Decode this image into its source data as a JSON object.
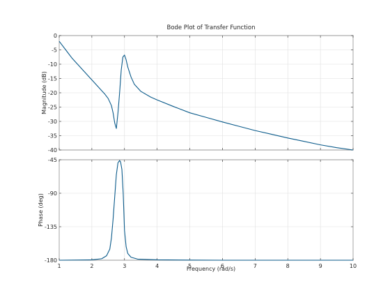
{
  "chart_data": [
    {
      "type": "line",
      "title": "Bode Plot of Transfer Function",
      "xlabel": "",
      "ylabel": "Magnitude (dB)",
      "xlim": [
        1,
        10
      ],
      "ylim": [
        -40,
        0
      ],
      "xticks": [
        "1",
        "2",
        "3",
        "4",
        "5",
        "6",
        "7",
        "8",
        "9",
        "10"
      ],
      "yticks": [
        "0",
        "-5",
        "-10",
        "-15",
        "-20",
        "-25",
        "-30",
        "-35",
        "-40"
      ],
      "grid": true,
      "series": [
        {
          "x": [
            1.0,
            1.2,
            1.4,
            1.6,
            1.8,
            2.0,
            2.2,
            2.4,
            2.5,
            2.6,
            2.65,
            2.7,
            2.75,
            2.8,
            2.85,
            2.9,
            2.95,
            3.0,
            3.05,
            3.1,
            3.2,
            3.3,
            3.5,
            3.8,
            4.0,
            4.5,
            5.0,
            5.5,
            6.0,
            6.5,
            7.0,
            7.5,
            8.0,
            8.5,
            9.0,
            9.5,
            10.0
          ],
          "y": [
            -2,
            -5,
            -8,
            -10.5,
            -13,
            -15.5,
            -18,
            -20.5,
            -22,
            -24.5,
            -27,
            -30.5,
            -32.5,
            -27,
            -20,
            -12,
            -7.5,
            -6.8,
            -8.5,
            -11,
            -14.5,
            -17,
            -19.5,
            -21.5,
            -22.5,
            -24.8,
            -27,
            -28.6,
            -30.2,
            -31.7,
            -33.2,
            -34.5,
            -35.8,
            -37,
            -38.2,
            -39.2,
            -40
          ]
        }
      ],
      "line_color": "#0a5a8a"
    },
    {
      "type": "line",
      "title": "",
      "xlabel": "Frequency  (rad/s)",
      "ylabel": "Phase (deg)",
      "xlim": [
        1,
        10
      ],
      "ylim": [
        -180,
        -45
      ],
      "xticks": [
        "1",
        "2",
        "3",
        "4",
        "5",
        "6",
        "7",
        "8",
        "9",
        "10"
      ],
      "yticks": [
        "-45",
        "-90",
        "-135",
        "-180"
      ],
      "grid": true,
      "series": [
        {
          "x": [
            1.0,
            2.0,
            2.3,
            2.45,
            2.55,
            2.6,
            2.65,
            2.7,
            2.75,
            2.8,
            2.85,
            2.88,
            2.92,
            2.96,
            3.0,
            3.05,
            3.1,
            3.2,
            3.4,
            3.7,
            4.0,
            5.0,
            6.0,
            8.0,
            10.0
          ],
          "y": [
            -180,
            -179.5,
            -178,
            -174,
            -165,
            -150,
            -125,
            -95,
            -65,
            -49,
            -46,
            -48,
            -58,
            -90,
            -140,
            -162,
            -171,
            -176,
            -178.5,
            -179,
            -179.5,
            -179.8,
            -180,
            -180,
            -180
          ]
        }
      ],
      "line_color": "#0a5a8a"
    }
  ]
}
